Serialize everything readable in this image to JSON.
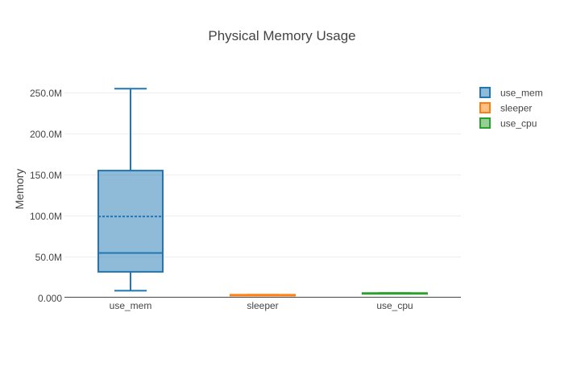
{
  "chart_data": {
    "type": "box",
    "title": "Physical Memory Usage",
    "xlabel": "",
    "ylabel": "Memory",
    "ylim": [
      0,
      265000000
    ],
    "y_ticks": [
      {
        "value": 0,
        "label": "0.000"
      },
      {
        "value": 50000000,
        "label": "50.0M"
      },
      {
        "value": 100000000,
        "label": "100.0M"
      },
      {
        "value": 150000000,
        "label": "150.0M"
      },
      {
        "value": 200000000,
        "label": "200.0M"
      },
      {
        "value": 250000000,
        "label": "250.0M"
      }
    ],
    "grid": true,
    "legend_position": "top-right",
    "categories": [
      "use_mem",
      "sleeper",
      "use_cpu"
    ],
    "series": [
      {
        "name": "use_mem",
        "color": "#1f77b4",
        "min": 8500000,
        "q1": 31500000,
        "median": 54500000,
        "mean": 99000000,
        "q3": 155000000,
        "max": 255000000
      },
      {
        "name": "sleeper",
        "color": "#ff7f0e",
        "min": 3000000,
        "q1": 3000000,
        "median": 3200000,
        "mean": 3200000,
        "q3": 3500000,
        "max": 3500000
      },
      {
        "name": "use_cpu",
        "color": "#2ca02c",
        "min": 5000000,
        "q1": 5000000,
        "median": 5300000,
        "mean": 5300000,
        "q3": 5600000,
        "max": 5600000
      }
    ]
  }
}
